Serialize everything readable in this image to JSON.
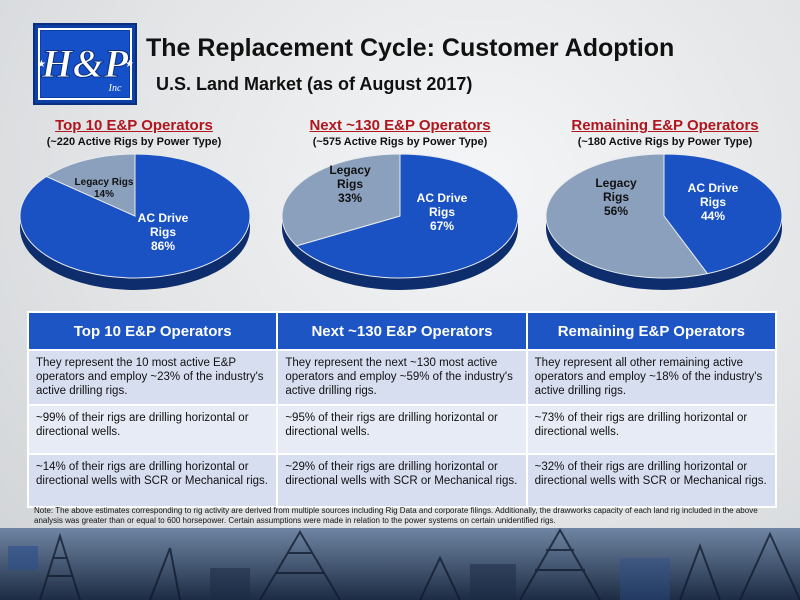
{
  "logo": {
    "text": "H&P",
    "sub": "Inc"
  },
  "header": {
    "title": "The Replacement Cycle: Customer Adoption",
    "subtitle": "U.S. Land Market (as of August 2017)"
  },
  "chart_data": [
    {
      "type": "pie",
      "title": "Top 10 E&P Operators",
      "subtitle": "(~220 Active Rigs by Power Type)",
      "slices": [
        {
          "label": "AC Drive Rigs",
          "value": 86
        },
        {
          "label": "Legacy Rigs",
          "value": 14
        }
      ],
      "colors": [
        "#1a52c4",
        "#8aa0bd"
      ]
    },
    {
      "type": "pie",
      "title": "Next ~130 E&P Operators",
      "subtitle": "(~575 Active Rigs by Power Type)",
      "slices": [
        {
          "label": "AC Drive Rigs",
          "value": 67
        },
        {
          "label": "Legacy Rigs",
          "value": 33
        }
      ],
      "colors": [
        "#1a52c4",
        "#8aa0bd"
      ]
    },
    {
      "type": "pie",
      "title": "Remaining E&P Operators",
      "subtitle": "(~180 Active Rigs by Power Type)",
      "slices": [
        {
          "label": "AC Drive Rigs",
          "value": 44
        },
        {
          "label": "Legacy Rigs",
          "value": 56
        }
      ],
      "colors": [
        "#1a52c4",
        "#8aa0bd"
      ]
    }
  ],
  "slice_text": [
    {
      "ac_l1": "AC Drive",
      "ac_l2": "Rigs",
      "ac_pct": "86%",
      "leg_l1": "Legacy Rigs",
      "leg_l2": "",
      "leg_pct": "14%"
    },
    {
      "ac_l1": "AC Drive",
      "ac_l2": "Rigs",
      "ac_pct": "67%",
      "leg_l1": "Legacy",
      "leg_l2": "Rigs",
      "leg_pct": "33%"
    },
    {
      "ac_l1": "AC Drive",
      "ac_l2": "Rigs",
      "ac_pct": "44%",
      "leg_l1": "Legacy",
      "leg_l2": "Rigs",
      "leg_pct": "56%"
    }
  ],
  "table": {
    "headers": [
      "Top 10 E&P Operators",
      "Next ~130 E&P Operators",
      "Remaining E&P Operators"
    ],
    "rows": [
      [
        "They represent the 10 most active E&P operators and employ ~23% of the industry's active drilling rigs.",
        "They represent the next ~130 most active operators and employ ~59% of the industry's active drilling rigs.",
        "They represent all other remaining active operators and employ ~18% of the industry's active drilling rigs."
      ],
      [
        "~99% of their rigs are drilling horizontal or directional wells.",
        "~95% of their rigs are drilling horizontal or directional wells.",
        "~73% of their rigs are drilling horizontal or directional wells."
      ],
      [
        "~14% of their rigs are drilling horizontal or directional wells with SCR or Mechanical rigs.",
        "~29% of their rigs are drilling horizontal or directional wells with SCR or Mechanical rigs.",
        "~32% of their rigs are drilling horizontal or directional wells with SCR or Mechanical rigs."
      ]
    ]
  },
  "note": "Note:   The above estimates corresponding to rig activity are derived from multiple sources including Rig Data and corporate filings.  Additionally, the drawworks capacity of each land rig included in the above analysis was greater than or equal to 600 horsepower.  Certain assumptions were made in relation to the power systems on certain unidentified rigs."
}
